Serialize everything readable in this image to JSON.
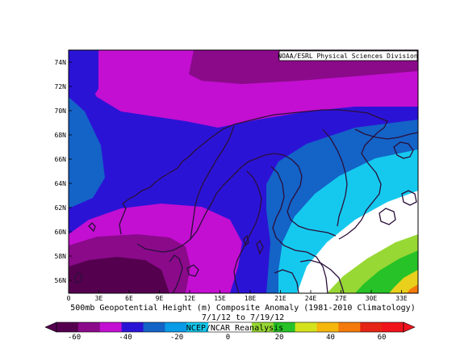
{
  "map": {
    "source_credit": "NOAA/ESRL Physical Sciences Division",
    "title": "500mb Geopotential Height (m) Composite Anomaly (1981-2010 Climatology)",
    "date_range": "7/1/12  to 7/19/12",
    "reanalysis_credit": "NCEP/NCAR Reanalysis",
    "x_ticks": [
      "0",
      "3E",
      "6E",
      "9E",
      "12E",
      "15E",
      "18E",
      "21E",
      "24E",
      "27E",
      "30E",
      "33E"
    ],
    "y_ticks": [
      "74N",
      "72N",
      "70N",
      "68N",
      "66N",
      "64N",
      "62N",
      "60N",
      "58N",
      "56N"
    ],
    "colorbar": {
      "labels": [
        "-60",
        "-40",
        "-20",
        "0",
        "20",
        "40",
        "60"
      ],
      "colors": [
        "#55004f",
        "#8a0a8a",
        "#c30fd1",
        "#2b13d6",
        "#1463c7",
        "#0a9be6",
        "#15c9ee",
        "#ffffff",
        "#ffffff",
        "#98d834",
        "#27c227",
        "#d4e21c",
        "#f6b70c",
        "#f47a0b",
        "#e52415",
        "#f0131c"
      ]
    },
    "field_colors": {
      "deep_purple": "#55004f",
      "purple": "#8a0a8a",
      "magenta": "#c30fd1",
      "blue_violet": "#2b13d6",
      "steel_blue": "#1463c7",
      "sky_blue": "#15c9ee",
      "white": "#ffffff",
      "light_green": "#98d834",
      "green": "#27c227",
      "yellow": "#e8d01c",
      "orange": "#f47a0b",
      "coast": "#2a0f3a"
    }
  }
}
